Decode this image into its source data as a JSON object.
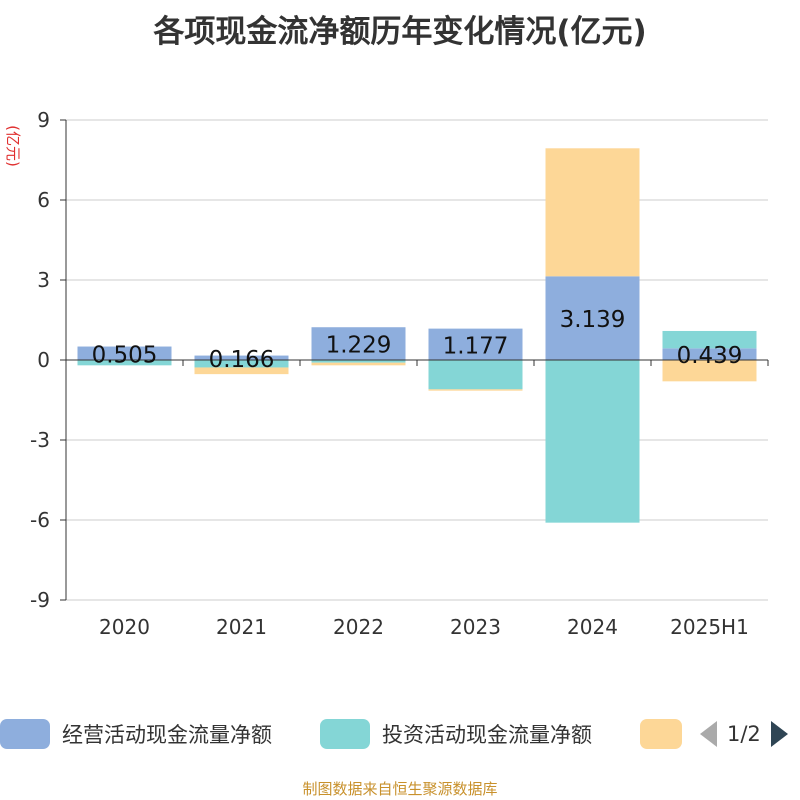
{
  "chart_data": {
    "type": "bar",
    "stacked": true,
    "title": "各项现金流净额历年变化情况(亿元)",
    "ylabel": "(亿元)",
    "categories": [
      "2020",
      "2021",
      "2022",
      "2023",
      "2024",
      "2025H1"
    ],
    "ylim": [
      -9,
      9
    ],
    "yticks": [
      9,
      6,
      3,
      0,
      -3,
      -6,
      -9
    ],
    "grid": true,
    "legend_position": "bottom",
    "series": [
      {
        "name": "经营活动现金流量净额",
        "color": "#8eaedd",
        "values": [
          0.505,
          0.166,
          1.229,
          1.177,
          3.139,
          0.439
        ],
        "labels": [
          "0.505",
          "0.166",
          "1.229",
          "1.177",
          "3.139",
          "0.439"
        ]
      },
      {
        "name": "投资活动现金流量净额",
        "color": "#84d6d6",
        "values": [
          -0.2,
          -0.28,
          -0.1,
          -1.1,
          -6.1,
          0.65
        ]
      },
      {
        "name": "",
        "color": "#fdd797",
        "values": [
          0.0,
          -0.25,
          -0.1,
          -0.05,
          4.8,
          -0.8
        ]
      }
    ]
  },
  "legend": {
    "page_indicator": "1/2"
  },
  "source_note": "制图数据来自恒生聚源数据库"
}
